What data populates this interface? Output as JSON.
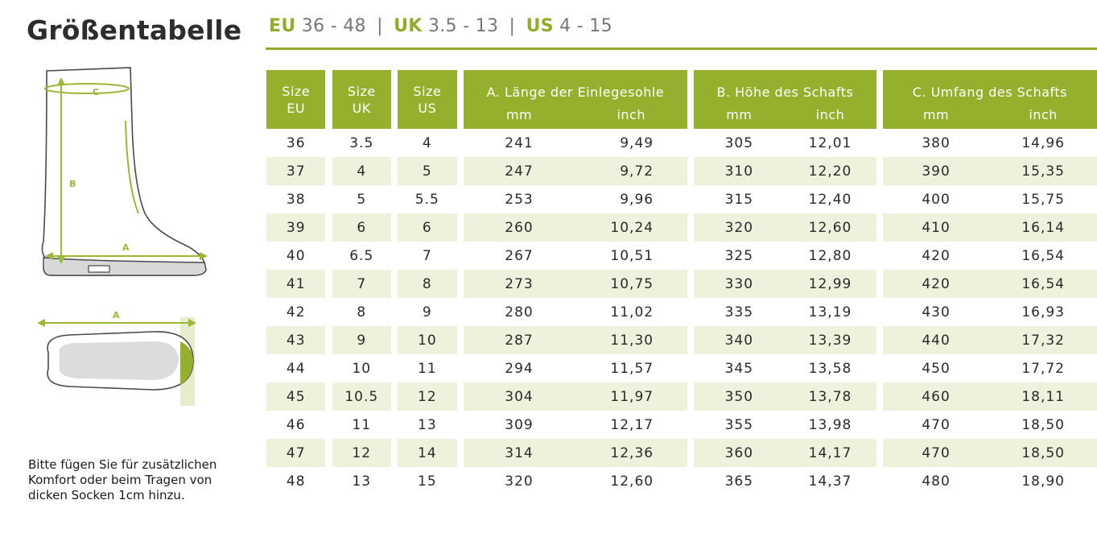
{
  "title": "Größentabelle",
  "ranges": [
    {
      "key": "EU",
      "value": "36 - 48"
    },
    {
      "key": "UK",
      "value": "3.5 - 13"
    },
    {
      "key": "US",
      "value": "4 - 15"
    }
  ],
  "diagram": {
    "boot_label_c": "C",
    "boot_label_b": "B",
    "boot_label_a": "A",
    "sole_label_a": "A"
  },
  "note": "Bitte fügen Sie für zusätzlichen Komfort oder beim Tragen von dicken Socken 1cm hinzu.",
  "headers": {
    "size_eu": [
      "Size",
      "EU"
    ],
    "size_uk": [
      "Size",
      "UK"
    ],
    "size_us": [
      "Size",
      "US"
    ],
    "group_a": "A. Länge der Einlegesohle",
    "group_b": "B. Höhe des Schafts",
    "group_c": "C. Umfang des Schafts",
    "mm": "mm",
    "inch": "inch"
  },
  "rows": [
    [
      "36",
      "3.5",
      "4",
      "241",
      "9,49",
      "305",
      "12,01",
      "380",
      "14,96"
    ],
    [
      "37",
      "4",
      "5",
      "247",
      "9,72",
      "310",
      "12,20",
      "390",
      "15,35"
    ],
    [
      "38",
      "5",
      "5.5",
      "253",
      "9,96",
      "315",
      "12,40",
      "400",
      "15,75"
    ],
    [
      "39",
      "6",
      "6",
      "260",
      "10,24",
      "320",
      "12,60",
      "410",
      "16,14"
    ],
    [
      "40",
      "6.5",
      "7",
      "267",
      "10,51",
      "325",
      "12,80",
      "420",
      "16,54"
    ],
    [
      "41",
      "7",
      "8",
      "273",
      "10,75",
      "330",
      "12,99",
      "420",
      "16,54"
    ],
    [
      "42",
      "8",
      "9",
      "280",
      "11,02",
      "335",
      "13,19",
      "430",
      "16,93"
    ],
    [
      "43",
      "9",
      "10",
      "287",
      "11,30",
      "340",
      "13,39",
      "440",
      "17,32"
    ],
    [
      "44",
      "10",
      "11",
      "294",
      "11,57",
      "345",
      "13,58",
      "450",
      "17,72"
    ],
    [
      "45",
      "10.5",
      "12",
      "304",
      "11,97",
      "350",
      "13,78",
      "460",
      "18,11"
    ],
    [
      "46",
      "11",
      "13",
      "309",
      "12,17",
      "355",
      "13,98",
      "470",
      "18,50"
    ],
    [
      "47",
      "12",
      "14",
      "314",
      "12,36",
      "360",
      "14,17",
      "470",
      "18,50"
    ],
    [
      "48",
      "13",
      "15",
      "320",
      "12,60",
      "365",
      "14,37",
      "480",
      "18,90"
    ]
  ],
  "colors": {
    "accent": "#94b02d",
    "stripe": "#eef2dc",
    "text": "#2a2a2a"
  }
}
